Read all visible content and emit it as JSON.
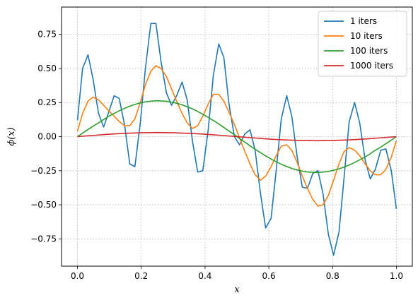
{
  "chart_data": {
    "type": "line",
    "xlabel": "x",
    "ylabel": "ϕ(x)",
    "xlim": [
      -0.05,
      1.05
    ],
    "ylim": [
      -0.95,
      0.95
    ],
    "grid": true,
    "legend_position": "top-right",
    "x_ticks": [
      0.0,
      0.2,
      0.4,
      0.6,
      0.8,
      1.0
    ],
    "x_tick_labels": [
      "0.0",
      "0.2",
      "0.4",
      "0.6",
      "0.8",
      "1.0"
    ],
    "y_ticks": [
      -0.75,
      -0.5,
      -0.25,
      0.0,
      0.25,
      0.5,
      0.75
    ],
    "y_tick_labels": [
      "−0.75",
      "−0.50",
      "−0.25",
      "0.00",
      "0.25",
      "0.50",
      "0.75"
    ],
    "series": [
      {
        "name": "1 iters",
        "color": "#1f77b4",
        "x": [
          0.0,
          0.016,
          0.033,
          0.049,
          0.066,
          0.082,
          0.098,
          0.115,
          0.131,
          0.148,
          0.164,
          0.18,
          0.197,
          0.213,
          0.23,
          0.246,
          0.262,
          0.279,
          0.295,
          0.311,
          0.328,
          0.344,
          0.361,
          0.377,
          0.393,
          0.41,
          0.426,
          0.443,
          0.459,
          0.475,
          0.492,
          0.508,
          0.525,
          0.541,
          0.557,
          0.574,
          0.59,
          0.607,
          0.623,
          0.639,
          0.656,
          0.672,
          0.689,
          0.705,
          0.721,
          0.738,
          0.754,
          0.77,
          0.787,
          0.803,
          0.82,
          0.836,
          0.852,
          0.869,
          0.885,
          0.902,
          0.918,
          0.934,
          0.951,
          0.967,
          0.984,
          1.0
        ],
        "y": [
          0.12,
          0.5,
          0.6,
          0.42,
          0.17,
          0.07,
          0.18,
          0.3,
          0.28,
          0.08,
          -0.2,
          -0.22,
          0.1,
          0.5,
          0.83,
          0.83,
          0.55,
          0.32,
          0.23,
          0.3,
          0.4,
          0.27,
          -0.04,
          -0.26,
          -0.25,
          0.05,
          0.45,
          0.68,
          0.58,
          0.24,
          0.0,
          -0.06,
          0.02,
          0.05,
          -0.1,
          -0.42,
          -0.67,
          -0.6,
          -0.25,
          0.13,
          0.3,
          0.15,
          -0.15,
          -0.37,
          -0.38,
          -0.27,
          -0.25,
          -0.42,
          -0.72,
          -0.87,
          -0.7,
          -0.3,
          0.11,
          0.25,
          0.1,
          -0.17,
          -0.31,
          -0.24,
          -0.1,
          -0.09,
          -0.25,
          -0.53
        ]
      },
      {
        "name": "10 iters",
        "color": "#ff7f0e",
        "x": [
          0.0,
          0.016,
          0.033,
          0.049,
          0.066,
          0.082,
          0.098,
          0.115,
          0.131,
          0.148,
          0.164,
          0.18,
          0.197,
          0.213,
          0.23,
          0.246,
          0.262,
          0.279,
          0.295,
          0.311,
          0.328,
          0.344,
          0.361,
          0.377,
          0.393,
          0.41,
          0.426,
          0.443,
          0.459,
          0.475,
          0.492,
          0.508,
          0.525,
          0.541,
          0.557,
          0.574,
          0.59,
          0.607,
          0.623,
          0.639,
          0.656,
          0.672,
          0.689,
          0.705,
          0.721,
          0.738,
          0.754,
          0.77,
          0.787,
          0.803,
          0.82,
          0.836,
          0.852,
          0.869,
          0.885,
          0.902,
          0.918,
          0.934,
          0.951,
          0.967,
          0.984,
          1.0
        ],
        "y": [
          0.04,
          0.17,
          0.26,
          0.29,
          0.27,
          0.23,
          0.19,
          0.15,
          0.11,
          0.08,
          0.08,
          0.13,
          0.25,
          0.38,
          0.48,
          0.52,
          0.5,
          0.44,
          0.35,
          0.26,
          0.17,
          0.1,
          0.06,
          0.08,
          0.15,
          0.24,
          0.31,
          0.31,
          0.26,
          0.18,
          0.09,
          -0.01,
          -0.11,
          -0.2,
          -0.28,
          -0.32,
          -0.29,
          -0.22,
          -0.14,
          -0.07,
          -0.06,
          -0.1,
          -0.19,
          -0.29,
          -0.38,
          -0.46,
          -0.51,
          -0.5,
          -0.43,
          -0.32,
          -0.2,
          -0.11,
          -0.08,
          -0.1,
          -0.14,
          -0.2,
          -0.25,
          -0.28,
          -0.28,
          -0.24,
          -0.15,
          -0.03
        ]
      },
      {
        "name": "100 iters",
        "color": "#2ca02c",
        "x": [
          0.0,
          0.016,
          0.033,
          0.049,
          0.066,
          0.082,
          0.098,
          0.115,
          0.131,
          0.148,
          0.164,
          0.18,
          0.197,
          0.213,
          0.23,
          0.246,
          0.262,
          0.279,
          0.295,
          0.311,
          0.328,
          0.344,
          0.361,
          0.377,
          0.393,
          0.41,
          0.426,
          0.443,
          0.459,
          0.475,
          0.492,
          0.508,
          0.525,
          0.541,
          0.557,
          0.574,
          0.59,
          0.607,
          0.623,
          0.639,
          0.656,
          0.672,
          0.689,
          0.705,
          0.721,
          0.738,
          0.754,
          0.77,
          0.787,
          0.803,
          0.82,
          0.836,
          0.852,
          0.869,
          0.885,
          0.902,
          0.918,
          0.934,
          0.951,
          0.967,
          0.984,
          1.0
        ],
        "y": [
          0.0,
          0.026,
          0.052,
          0.077,
          0.1,
          0.126,
          0.149,
          0.17,
          0.19,
          0.208,
          0.223,
          0.236,
          0.247,
          0.255,
          0.26,
          0.263,
          0.262,
          0.259,
          0.253,
          0.245,
          0.233,
          0.219,
          0.203,
          0.184,
          0.164,
          0.141,
          0.118,
          0.093,
          0.067,
          0.041,
          0.014,
          -0.014,
          -0.041,
          -0.067,
          -0.093,
          -0.118,
          -0.141,
          -0.164,
          -0.184,
          -0.203,
          -0.219,
          -0.233,
          -0.245,
          -0.253,
          -0.259,
          -0.262,
          -0.263,
          -0.26,
          -0.255,
          -0.247,
          -0.236,
          -0.223,
          -0.208,
          -0.19,
          -0.17,
          -0.149,
          -0.126,
          -0.1,
          -0.077,
          -0.052,
          -0.026,
          0.0
        ]
      },
      {
        "name": "1000 iters",
        "color": "#d62728",
        "x": [
          0.0,
          0.05,
          0.1,
          0.15,
          0.2,
          0.25,
          0.3,
          0.35,
          0.4,
          0.45,
          0.5,
          0.55,
          0.6,
          0.65,
          0.7,
          0.75,
          0.8,
          0.85,
          0.9,
          0.95,
          1.0
        ],
        "y": [
          0.0,
          0.009,
          0.018,
          0.024,
          0.028,
          0.03,
          0.028,
          0.024,
          0.018,
          0.009,
          0.0,
          -0.009,
          -0.018,
          -0.024,
          -0.028,
          -0.03,
          -0.028,
          -0.024,
          -0.018,
          -0.009,
          0.0
        ]
      }
    ]
  }
}
